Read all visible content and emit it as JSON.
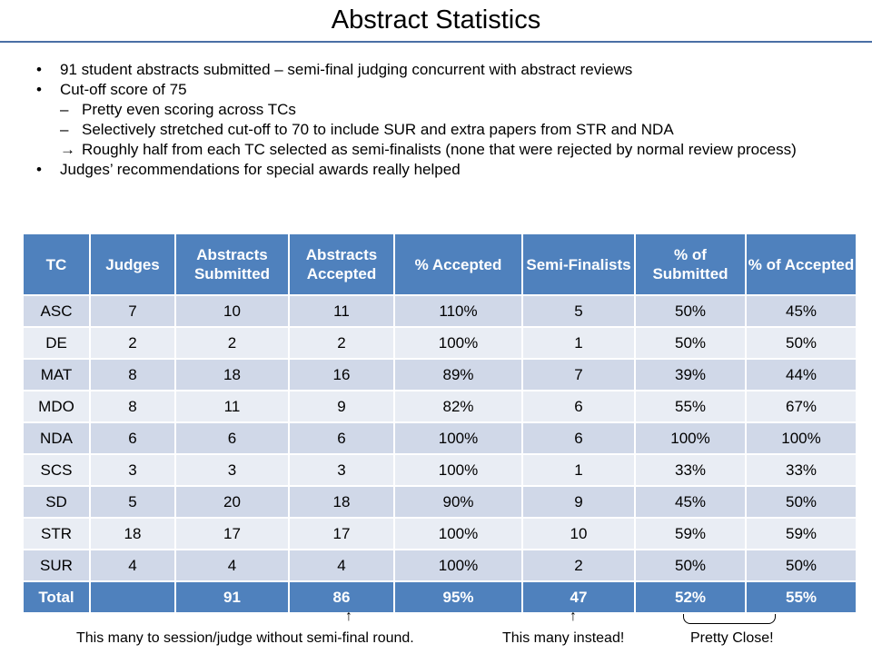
{
  "title": "Abstract Statistics",
  "bullets": [
    {
      "level": 1,
      "marker": "•",
      "text": "91 student abstracts submitted – semi-final judging concurrent with abstract reviews"
    },
    {
      "level": 1,
      "marker": "•",
      "text": "Cut-off score of 75"
    },
    {
      "level": 2,
      "marker": "–",
      "text": "Pretty even scoring across TCs"
    },
    {
      "level": 2,
      "marker": "–",
      "text": "Selectively stretched cut-off to 70 to include SUR and extra papers from STR and NDA"
    },
    {
      "level": 2,
      "marker": "→",
      "text": "Roughly half from each TC selected as semi-finalists (none that were rejected by normal review process)"
    },
    {
      "level": 1,
      "marker": "•",
      "text": "Judges’ recommendations for special awards really helped"
    }
  ],
  "table": {
    "headers": [
      "TC",
      "Judges",
      "Abstracts Submitted",
      "Abstracts Accepted",
      "% Accepted",
      "Semi-Finalists",
      "% of Submitted",
      "% of Accepted"
    ],
    "rows": [
      [
        "ASC",
        "7",
        "10",
        "11",
        "110%",
        "5",
        "50%",
        "45%"
      ],
      [
        "DE",
        "2",
        "2",
        "2",
        "100%",
        "1",
        "50%",
        "50%"
      ],
      [
        "MAT",
        "8",
        "18",
        "16",
        "89%",
        "7",
        "39%",
        "44%"
      ],
      [
        "MDO",
        "8",
        "11",
        "9",
        "82%",
        "6",
        "55%",
        "67%"
      ],
      [
        "NDA",
        "6",
        "6",
        "6",
        "100%",
        "6",
        "100%",
        "100%"
      ],
      [
        "SCS",
        "3",
        "3",
        "3",
        "100%",
        "1",
        "33%",
        "33%"
      ],
      [
        "SD",
        "5",
        "20",
        "18",
        "90%",
        "9",
        "45%",
        "50%"
      ],
      [
        "STR",
        "18",
        "17",
        "17",
        "100%",
        "10",
        "59%",
        "59%"
      ],
      [
        "SUR",
        "4",
        "4",
        "4",
        "100%",
        "2",
        "50%",
        "50%"
      ]
    ],
    "total": [
      "Total",
      "",
      "91",
      "86",
      "95%",
      "47",
      "52%",
      "55%"
    ]
  },
  "annotations": {
    "arrow_glyph": "↑",
    "note_session": "This many to session/judge without semi-final round.",
    "note_instead": "This many instead!",
    "note_close": "Pretty Close!"
  }
}
